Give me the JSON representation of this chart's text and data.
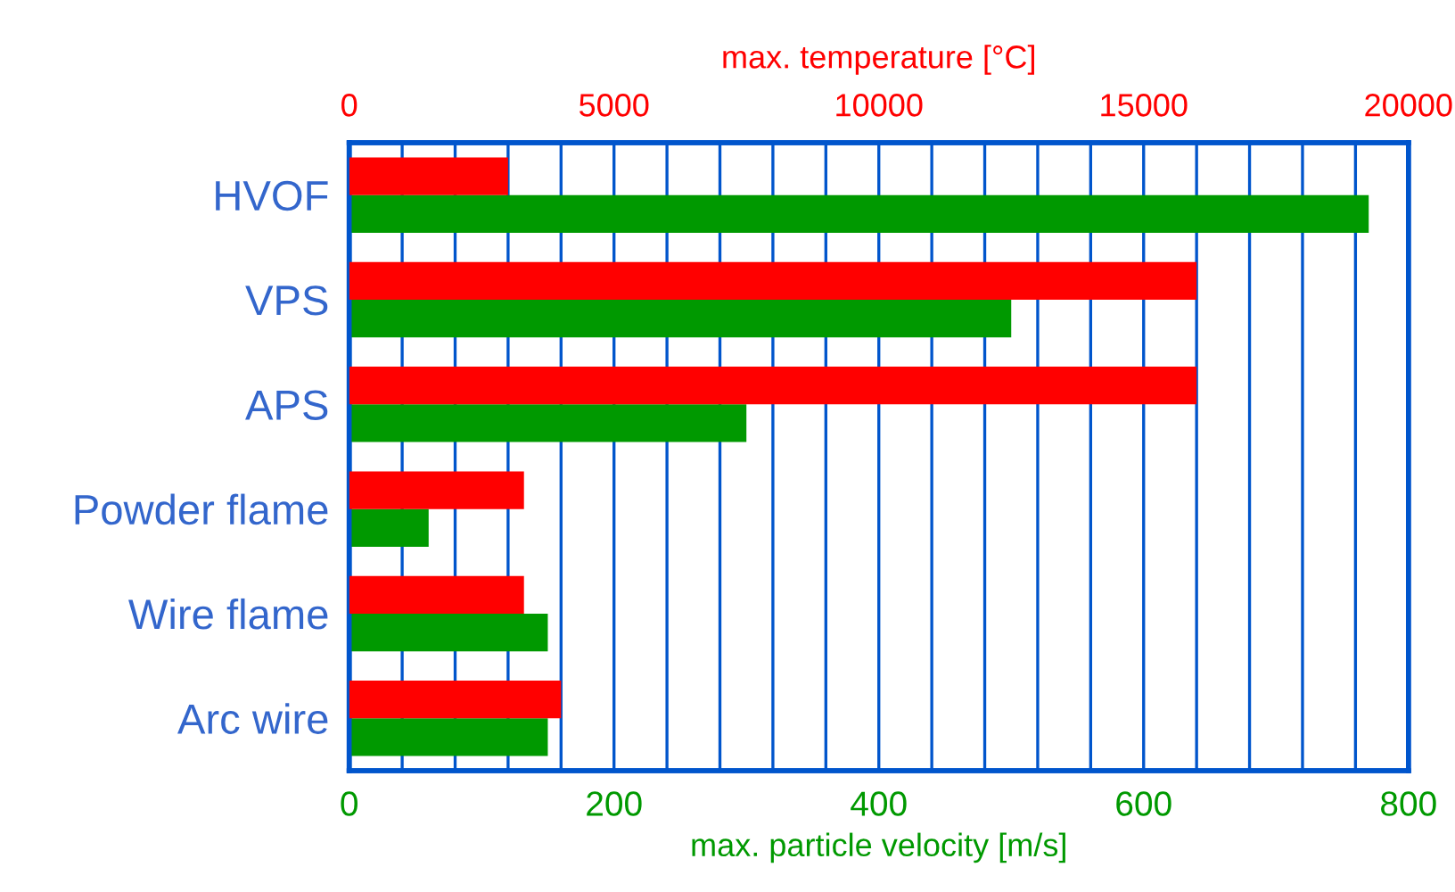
{
  "chart_data": {
    "type": "bar",
    "orientation": "horizontal",
    "xlabel": "max. particle velocity [m/s]",
    "x2label": "max. temperature [°C]",
    "categories": [
      "HVOF",
      "VPS",
      "APS",
      "Powder flame",
      "Wire flame",
      "Arc wire"
    ],
    "series": [
      {
        "color": "#ff0000",
        "axis": "x2",
        "values": [
          3000,
          16000,
          16000,
          3300,
          3300,
          4000
        ]
      },
      {
        "color": "#009900",
        "values": [
          770,
          500,
          300,
          60,
          150,
          150
        ]
      }
    ],
    "xlim": [
      0,
      800
    ],
    "xticks": [
      0,
      {
        "value": 40,
        "label": null
      },
      {
        "value": 80,
        "label": null
      },
      {
        "value": 120,
        "label": null
      },
      {
        "value": 160,
        "label": null
      },
      200,
      {
        "value": 240,
        "label": null
      },
      {
        "value": 280,
        "label": null
      },
      {
        "value": 320,
        "label": null
      },
      {
        "value": 360,
        "label": null
      },
      400,
      {
        "value": 440,
        "label": null
      },
      {
        "value": 480,
        "label": null
      },
      {
        "value": 520,
        "label": null
      },
      {
        "value": 560,
        "label": null
      },
      600,
      {
        "value": 640,
        "label": null
      },
      {
        "value": 680,
        "label": null
      },
      {
        "value": 720,
        "label": null
      },
      {
        "value": 760,
        "label": null
      },
      800
    ],
    "x2lim": [
      0,
      20000
    ],
    "x2ticks": [
      0,
      5000,
      10000,
      15000,
      20000
    ],
    "grid": "x"
  }
}
